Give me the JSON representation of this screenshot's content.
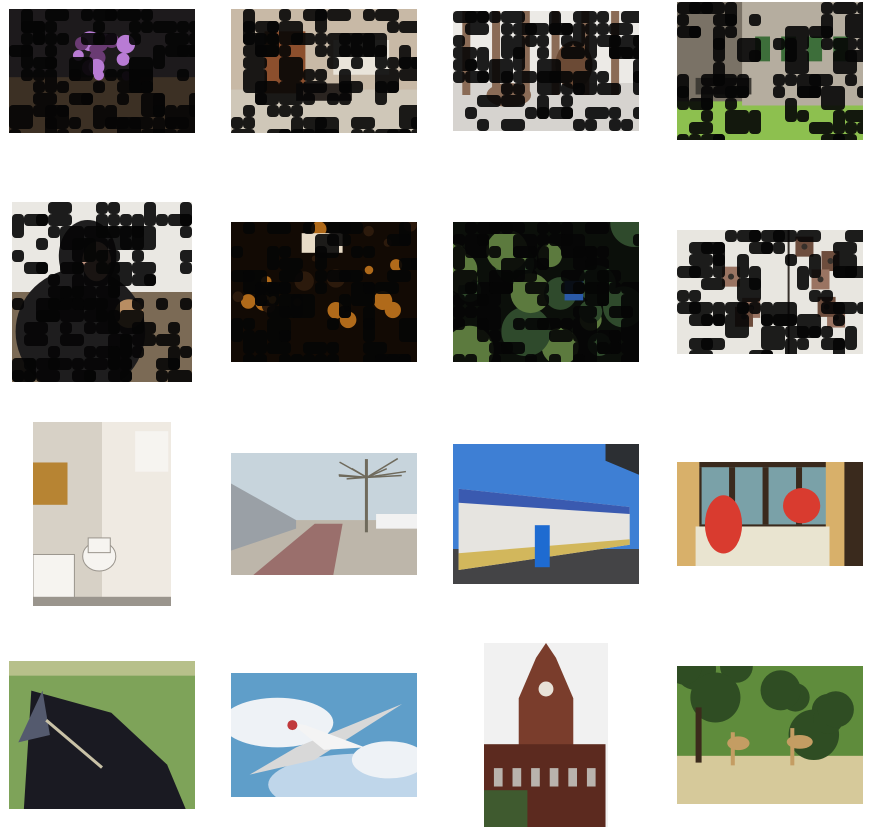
{
  "gallery": {
    "rows": 4,
    "columns": 4,
    "images": [
      {
        "subject": "flowers-indoor-masked",
        "masked": true,
        "colors": [
          "#1d1a1c",
          "#6a3b73",
          "#b87bd4",
          "#3c3024",
          "#0f0d0b"
        ]
      },
      {
        "subject": "living-room-masked",
        "masked": true,
        "colors": [
          "#c8b9a6",
          "#8c4f2d",
          "#cfc7b8",
          "#2a2420",
          "#e9e4da"
        ]
      },
      {
        "subject": "bears-in-forest-masked",
        "masked": true,
        "colors": [
          "#eceae6",
          "#6b4a35",
          "#8a6b56",
          "#d6d3cf",
          "#201a16"
        ]
      },
      {
        "subject": "stone-building-bench-masked",
        "masked": true,
        "colors": [
          "#7a7266",
          "#3d6e3a",
          "#8dc04f",
          "#3e3b35",
          "#b5ad9f"
        ]
      },
      {
        "subject": "person-hoodie-masked",
        "masked": true,
        "colors": [
          "#eae8e3",
          "#1e1d1e",
          "#c79a86",
          "#7b6a55",
          "#b88d62"
        ]
      },
      {
        "subject": "dark-restaurant-masked",
        "masked": true,
        "colors": [
          "#120a04",
          "#6b3b11",
          "#b06a1a",
          "#2c1a0c",
          "#e8dcc7"
        ]
      },
      {
        "subject": "garden-trees-masked",
        "masked": true,
        "colors": [
          "#0b0f0a",
          "#2f4a2c",
          "#5c7a3e",
          "#2a5aa8",
          "#e4e4e0"
        ]
      },
      {
        "subject": "birdhouses-masked",
        "masked": true,
        "colors": [
          "#e8e6e0",
          "#6d4d3d",
          "#9a7462",
          "#36302b",
          "#cfc9bf"
        ]
      },
      {
        "subject": "bathroom-toilet",
        "masked": false,
        "colors": [
          "#efeae2",
          "#b78433",
          "#d7d1c6",
          "#f6f4f0",
          "#9a958d"
        ]
      },
      {
        "subject": "train-station-platform",
        "masked": false,
        "colors": [
          "#c7d4dc",
          "#9a6f6c",
          "#bdb6aa",
          "#6f6a5c",
          "#d9d2c6"
        ]
      },
      {
        "subject": "articulated-bus",
        "masked": false,
        "colors": [
          "#3e7fd4",
          "#e6e4e0",
          "#3a5ab0",
          "#d2b75c",
          "#444446"
        ]
      },
      {
        "subject": "window-seat-pillows",
        "masked": false,
        "colors": [
          "#3a2a1d",
          "#d8b06a",
          "#d93b2f",
          "#7aa1a8",
          "#e9e4d0"
        ]
      },
      {
        "subject": "horse-portrait",
        "masked": false,
        "colors": [
          "#7ea359",
          "#1a1a22",
          "#c9c2a7",
          "#545a6e",
          "#b7c08a"
        ]
      },
      {
        "subject": "airplane-sky",
        "masked": false,
        "colors": [
          "#5f9ec9",
          "#eef2f6",
          "#bfd6ea",
          "#c0393b",
          "#d8d8d8"
        ]
      },
      {
        "subject": "brick-clock-tower",
        "masked": false,
        "colors": [
          "#f1f1f1",
          "#7a3d2c",
          "#5c2a1f",
          "#3f5a2f",
          "#b9b3ad"
        ]
      },
      {
        "subject": "giraffes-park",
        "masked": false,
        "colors": [
          "#5f8c3c",
          "#2f4d23",
          "#b9a96c",
          "#c49d63",
          "#d6c99a"
        ]
      }
    ]
  }
}
